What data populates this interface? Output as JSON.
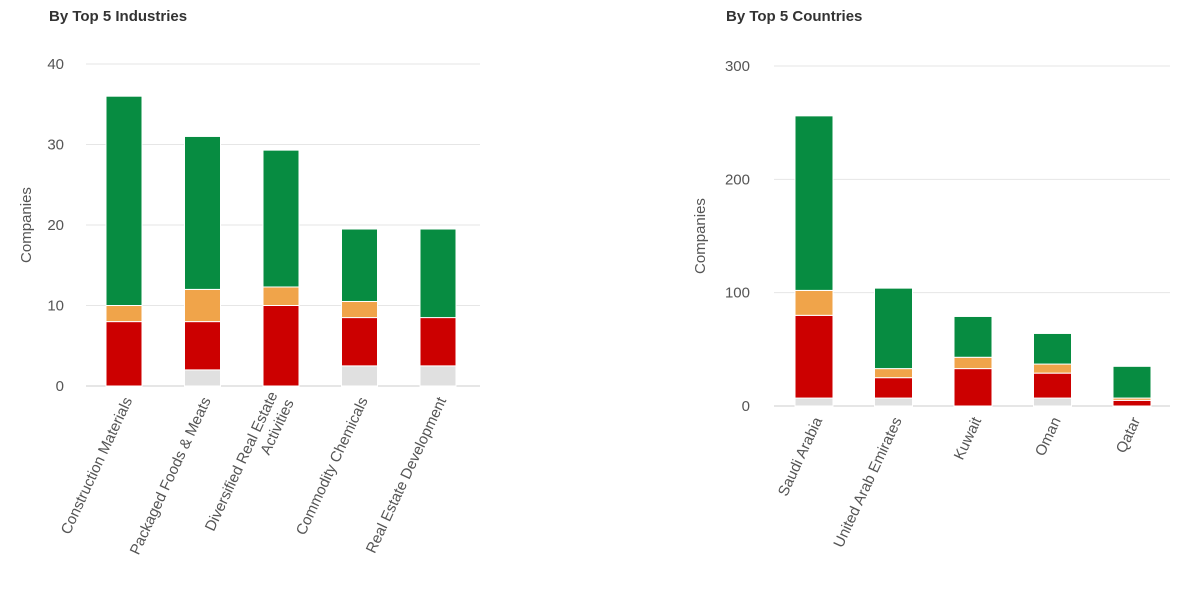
{
  "chart_data": [
    {
      "type": "bar",
      "stacked": true,
      "title": "By Top 5 Industries",
      "ylabel": "Companies",
      "ylim": [
        0,
        40
      ],
      "yticks": [
        0,
        10,
        20,
        30,
        40
      ],
      "categories": [
        "Construction Materials",
        "Packaged Foods & Meats",
        "Diversified Real Estate Activities",
        "Commodity Chemicals",
        "Real Estate Development"
      ],
      "category_lines": [
        [
          "Construction Materials"
        ],
        [
          "Packaged Foods & Meats"
        ],
        [
          "Diversified Real Estate",
          "Activities"
        ],
        [
          "Commodity Chemicals"
        ],
        [
          "Real Estate Development"
        ]
      ],
      "series": [
        {
          "color": "#e0e0e0",
          "values": [
            0,
            2,
            0,
            2.5,
            2.5
          ]
        },
        {
          "color": "#cc0000",
          "values": [
            8,
            6,
            10,
            6,
            6
          ]
        },
        {
          "color": "#f0a44a",
          "values": [
            2,
            4,
            2.3,
            2,
            0
          ]
        },
        {
          "color": "#078c41",
          "values": [
            26,
            19,
            17,
            9,
            11
          ]
        }
      ],
      "grid": true
    },
    {
      "type": "bar",
      "stacked": true,
      "title": "By Top 5 Countries",
      "ylabel": "Companies",
      "ylim": [
        0,
        300
      ],
      "yticks": [
        0,
        100,
        200,
        300
      ],
      "categories": [
        "Saudi Arabia",
        "United Arab Emirates",
        "Kuwait",
        "Oman",
        "Qatar"
      ],
      "category_lines": [
        [
          "Saudi Arabia"
        ],
        [
          "United Arab Emirates"
        ],
        [
          "Kuwait"
        ],
        [
          "Oman"
        ],
        [
          "Qatar"
        ]
      ],
      "series": [
        {
          "color": "#e0e0e0",
          "values": [
            7,
            7,
            0,
            7,
            0
          ]
        },
        {
          "color": "#cc0000",
          "values": [
            73,
            18,
            33,
            22,
            5
          ]
        },
        {
          "color": "#f0a44a",
          "values": [
            22,
            8,
            10,
            8,
            2
          ]
        },
        {
          "color": "#078c41",
          "values": [
            154,
            71,
            36,
            27,
            28
          ]
        }
      ],
      "grid": true
    }
  ]
}
